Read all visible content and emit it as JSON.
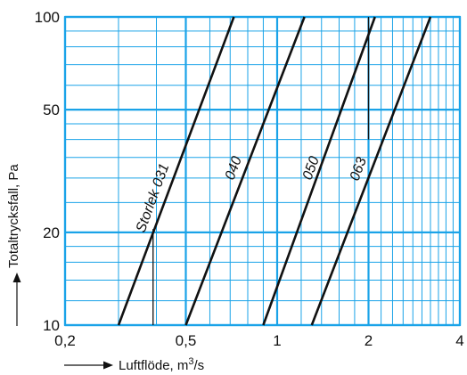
{
  "chart_data": {
    "type": "line",
    "title": "",
    "xlabel": "Luftflöde, m",
    "xlabel_sup": "3",
    "xlabel_suffix": "/s",
    "ylabel": "Totaltrycksfall, Pa",
    "x_scale": "log",
    "y_scale": "log",
    "xlim": [
      0.2,
      4
    ],
    "ylim": [
      10,
      100
    ],
    "grid": true,
    "grid_color": "#1aa3e8",
    "line_color": "#111111",
    "x_ticks": [
      {
        "value": 0.2,
        "label": "0,2"
      },
      {
        "value": 0.5,
        "label": "0,5"
      },
      {
        "value": 1,
        "label": "1"
      },
      {
        "value": 2,
        "label": "2"
      },
      {
        "value": 4,
        "label": "4"
      }
    ],
    "y_ticks": [
      {
        "value": 10,
        "label": "10"
      },
      {
        "value": 20,
        "label": "20"
      },
      {
        "value": 50,
        "label": "50"
      },
      {
        "value": 100,
        "label": "100"
      }
    ],
    "series": [
      {
        "name": "Storlek 031",
        "x": [
          0.3,
          0.72
        ],
        "y": [
          10,
          100
        ]
      },
      {
        "name": "040",
        "x": [
          0.5,
          1.23
        ],
        "y": [
          10,
          100
        ]
      },
      {
        "name": "050",
        "x": [
          0.9,
          2.1
        ],
        "y": [
          10,
          100
        ]
      },
      {
        "name": "063",
        "x": [
          1.3,
          3.2
        ],
        "y": [
          10,
          100
        ]
      }
    ],
    "reference_lines": [
      {
        "x": 0.39,
        "y": [
          10,
          20.5
        ]
      },
      {
        "x": 2.0,
        "y": [
          40,
          100
        ]
      }
    ]
  }
}
